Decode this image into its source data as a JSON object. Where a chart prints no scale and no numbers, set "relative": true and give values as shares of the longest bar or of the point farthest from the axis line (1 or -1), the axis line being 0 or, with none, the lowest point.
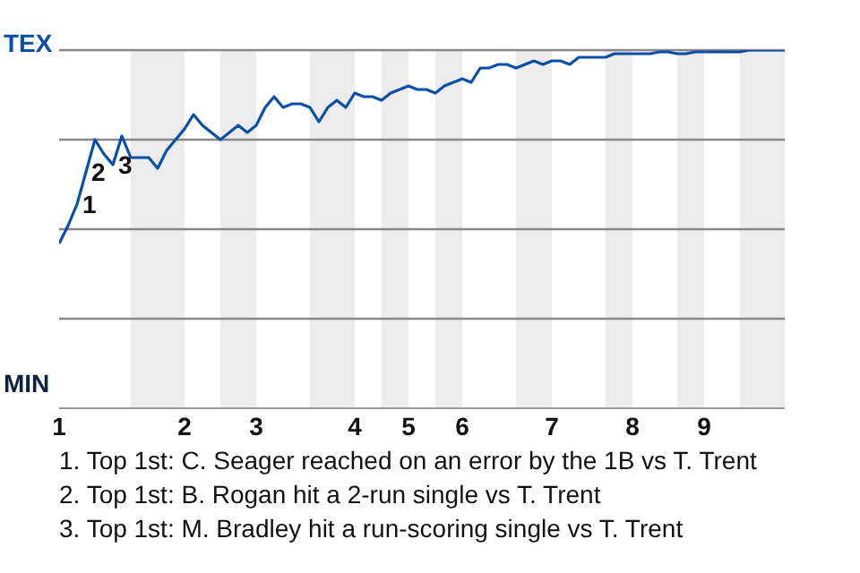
{
  "chart_data": {
    "type": "line",
    "relative": true,
    "categories": [
      "1",
      null,
      null,
      null,
      null,
      null,
      null,
      null,
      null,
      null,
      null,
      null,
      null,
      null,
      "2",
      null,
      null,
      null,
      null,
      null,
      null,
      null,
      "3",
      null,
      null,
      null,
      null,
      null,
      null,
      null,
      null,
      null,
      null,
      "4",
      null,
      null,
      null,
      null,
      null,
      "5",
      null,
      null,
      null,
      null,
      null,
      "6",
      null,
      null,
      null,
      null,
      null,
      null,
      null,
      null,
      null,
      "7",
      null,
      null,
      null,
      null,
      null,
      null,
      null,
      null,
      "8",
      null,
      null,
      null,
      null,
      null,
      null,
      null,
      "9",
      null,
      null,
      null,
      null,
      null,
      null,
      null,
      null,
      null
    ],
    "series": [
      {
        "color": "#0a4ea8",
        "values": [
          0.46,
          0.51,
          0.57,
          0.66,
          0.75,
          0.71,
          0.68,
          0.76,
          0.7,
          0.7,
          0.7,
          0.67,
          0.72,
          0.75,
          0.78,
          0.82,
          0.79,
          0.77,
          0.75,
          0.77,
          0.79,
          0.77,
          0.79,
          0.84,
          0.87,
          0.84,
          0.85,
          0.85,
          0.84,
          0.8,
          0.84,
          0.86,
          0.84,
          0.88,
          0.87,
          0.87,
          0.86,
          0.88,
          0.89,
          0.9,
          0.89,
          0.89,
          0.88,
          0.9,
          0.91,
          0.92,
          0.91,
          0.95,
          0.95,
          0.96,
          0.96,
          0.95,
          0.96,
          0.97,
          0.96,
          0.97,
          0.97,
          0.96,
          0.98,
          0.98,
          0.98,
          0.98,
          0.99,
          0.99,
          0.99,
          0.99,
          0.99,
          0.995,
          0.995,
          0.99,
          0.99,
          0.995,
          0.995,
          0.995,
          0.995,
          0.995,
          0.995,
          1,
          1,
          1,
          1,
          1
        ]
      }
    ],
    "ref_lines": [
      {
        "axis": "y",
        "value": 1,
        "color": "#888888"
      },
      {
        "axis": "y",
        "value": 0.75,
        "color": "#888888"
      },
      {
        "axis": "y",
        "value": 0.5,
        "color": "#888888"
      },
      {
        "axis": "y",
        "value": 0.25,
        "color": "#888888"
      }
    ],
    "annotations": [
      "TEX",
      "MIN",
      "1",
      "2",
      "3",
      "1. Top 1st: C. Seager reached on an error by the 1B vs T. Trent",
      "2. Top 1st: B. Rogan hit a 2-run single vs T. Trent",
      "3. Top 1st: M. Bradley hit a run-scoring single vs T. Trent"
    ]
  }
}
